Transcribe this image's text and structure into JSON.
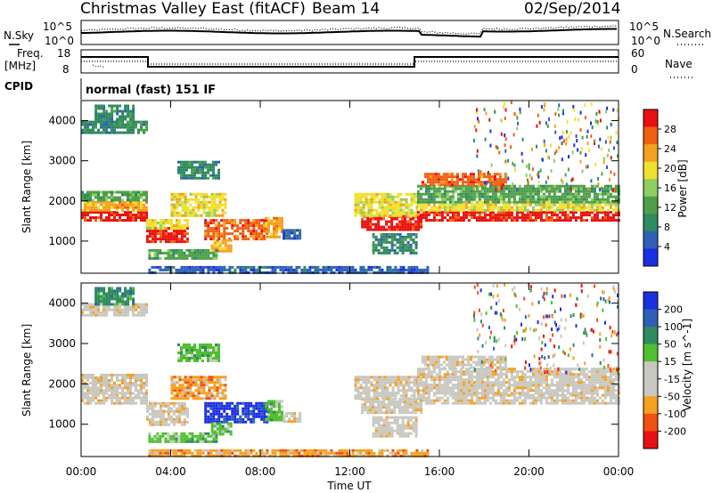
{
  "header": {
    "title": "Christmas Valley East (fitACF)",
    "beam": "Beam 14",
    "date": "02/Sep/2014"
  },
  "status_panels": {
    "nsky_label": "N.Sky",
    "nsearch_label": "N.Search",
    "noise_ticks": [
      "10^5",
      "10^0"
    ],
    "freq_label_1": "Freq.",
    "freq_label_2": "[MHz]",
    "freq_ticks": [
      "18",
      "8"
    ],
    "nave_label": "Nave",
    "nave_ticks": [
      "60",
      "0"
    ],
    "cpid_label": "CPID",
    "cpid_text": "normal (fast) 151 IF"
  },
  "colors": {
    "power": [
      "#1a2fe0",
      "#2e5fb8",
      "#2f8a60",
      "#4f9f4a",
      "#8fcf60",
      "#f0e030",
      "#f5a020",
      "#f06010",
      "#e81010"
    ],
    "velocity": [
      "#e81010",
      "#f05010",
      "#f5a020",
      "#c8c8c0",
      "#c8c8c0",
      "#50c030",
      "#2f8a60",
      "#2e5fb8",
      "#1a2fe0"
    ]
  },
  "chart_data": [
    {
      "type": "heatmap",
      "panel": "power",
      "ylabel": "Slant Range [km]",
      "x_ticks": [
        "00:00",
        "04:00",
        "08:00",
        "12:00",
        "16:00",
        "20:00",
        "00:00"
      ],
      "y_ticks": [
        1000,
        2000,
        3000,
        4000
      ],
      "ylim": [
        200,
        4500
      ],
      "xlim_hours": [
        0,
        24
      ],
      "colorbar": {
        "label": "Power [dB]",
        "ticks": [
          4,
          8,
          12,
          16,
          20,
          24,
          28
        ],
        "range": [
          0,
          30
        ]
      }
    },
    {
      "type": "heatmap",
      "panel": "velocity",
      "ylabel": "Slant Range [km]",
      "xlabel": "Time UT",
      "x_ticks": [
        "00:00",
        "04:00",
        "08:00",
        "12:00",
        "16:00",
        "20:00",
        "00:00"
      ],
      "y_ticks": [
        1000,
        2000,
        3000,
        4000
      ],
      "ylim": [
        200,
        4500
      ],
      "xlim_hours": [
        0,
        24
      ],
      "colorbar": {
        "label": "Velocity [m s^-1]",
        "ticks": [
          200,
          100,
          50,
          15,
          -15,
          -50,
          -100,
          -200
        ]
      }
    }
  ]
}
